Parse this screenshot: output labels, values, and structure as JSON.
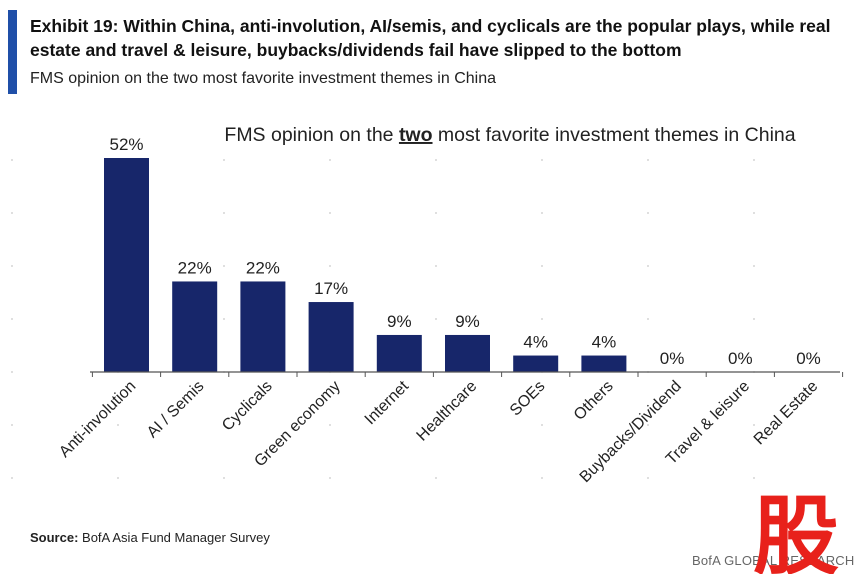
{
  "exhibit": {
    "title": "Exhibit 19: Within China, anti-involution, AI/semis, and cyclicals are the popular plays, while real estate and travel & leisure, buybacks/dividends fail have slipped to the bottom",
    "subtitle": "FMS opinion on the two most favorite investment themes in China"
  },
  "chart_data": {
    "type": "bar",
    "title_pre": "FMS opinion on the ",
    "title_emph": "two",
    "title_post": " most favorite investment themes in China",
    "categories": [
      "Anti-involution",
      "AI / Semis",
      "Cyclicals",
      "Green economy",
      "Internet",
      "Healthcare",
      "SOEs",
      "Others",
      "Buybacks/Dividend",
      "Travel & leisure",
      "Real Estate"
    ],
    "values": [
      52,
      22,
      22,
      17,
      9,
      9,
      4,
      4,
      0,
      0,
      0
    ],
    "value_labels": [
      "52%",
      "22%",
      "22%",
      "17%",
      "9%",
      "9%",
      "4%",
      "4%",
      "0%",
      "0%",
      "0%"
    ],
    "ylim": [
      0,
      52
    ],
    "bar_color": "#17266a",
    "xlabel": "",
    "ylabel": ""
  },
  "source": {
    "label": "Source:",
    "text": " BofA Asia Fund Manager Survey"
  },
  "footer": {
    "brand": "BofA GLOBAL RESEARCH"
  },
  "watermark": {
    "glyph": "股",
    "color": "#e8211b"
  }
}
